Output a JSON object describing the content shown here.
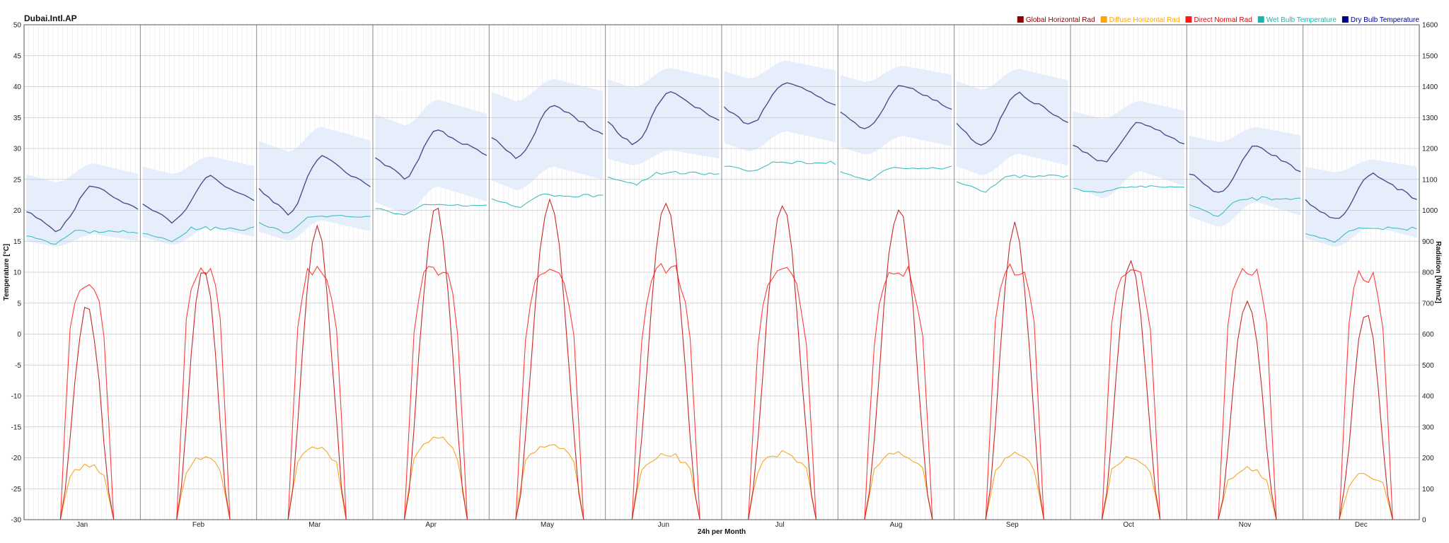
{
  "chart_data": {
    "type": "line",
    "title": "Dubai.Intl.AP",
    "xlabel": "24h per Month",
    "ylabel_left": "Temperature [°C]",
    "ylabel_right": "Radiation [Wh/m2]",
    "ylim_left": [
      -30,
      50
    ],
    "ylim_right": [
      0,
      1600
    ],
    "y_ticks_left": [
      -30,
      -25,
      -20,
      -15,
      -10,
      -5,
      0,
      5,
      10,
      15,
      20,
      25,
      30,
      35,
      40,
      45,
      50
    ],
    "y_ticks_right": [
      0,
      100,
      200,
      300,
      400,
      500,
      600,
      700,
      800,
      900,
      1000,
      1100,
      1200,
      1300,
      1400,
      1500,
      1600
    ],
    "categories": [
      "Jan",
      "Feb",
      "Mar",
      "Apr",
      "May",
      "Jun",
      "Jul",
      "Aug",
      "Sep",
      "Oct",
      "Nov",
      "Dec"
    ],
    "hours_per_month": 24,
    "grid": true,
    "legend_position": "top-right",
    "legend": [
      {
        "label": "Global Horizontal Rad",
        "color": "#8b0000",
        "text_color": "#8b0000"
      },
      {
        "label": "Diffuse Horizontal Rad",
        "color": "#ffa500",
        "text_color": "#ffa500"
      },
      {
        "label": "Direct Normal Rad",
        "color": "#ff1a1a",
        "text_color": "#e00000"
      },
      {
        "label": "Wet Bulb Temperature",
        "color": "#20b2aa",
        "text_color": "#20b2aa"
      },
      {
        "label": "Dry Bulb Temperature",
        "color": "#00008b",
        "text_color": "#00008b"
      }
    ],
    "colors": {
      "dry_bulb": "#4a4f8c",
      "dry_band": "#e6eefc",
      "wet_bulb": "#3fbfbf",
      "global": "#c62828",
      "diffuse": "#f5a623",
      "direct": "#ff3b3b"
    },
    "series": [
      {
        "name": "Dry Bulb Temperature",
        "axis": "left",
        "monthly": [
          {
            "month": "Jan",
            "min": 16.8,
            "max": 24,
            "min_hour": 6,
            "max_hour": 14
          },
          {
            "month": "Feb",
            "min": 18.2,
            "max": 25.4,
            "min_hour": 6,
            "max_hour": 14
          },
          {
            "month": "Mar",
            "min": 19.5,
            "max": 28.8,
            "min_hour": 6,
            "max_hour": 13
          },
          {
            "month": "Apr",
            "min": 25.3,
            "max": 33.0,
            "min_hour": 6,
            "max_hour": 13
          },
          {
            "month": "May",
            "min": 28.3,
            "max": 37.0,
            "min_hour": 5,
            "max_hour": 13
          },
          {
            "month": "Jun",
            "min": 30.5,
            "max": 39.3,
            "min_hour": 5,
            "max_hour": 13
          },
          {
            "month": "Jul",
            "min": 33.8,
            "max": 40.8,
            "min_hour": 5,
            "max_hour": 13
          },
          {
            "month": "Aug",
            "min": 33.0,
            "max": 40.3,
            "min_hour": 5,
            "max_hour": 13
          },
          {
            "month": "Sep",
            "min": 30.3,
            "max": 38.9,
            "min_hour": 5,
            "max_hour": 13
          },
          {
            "month": "Oct",
            "min": 27.8,
            "max": 34.3,
            "min_hour": 6,
            "max_hour": 14
          },
          {
            "month": "Nov",
            "min": 22.7,
            "max": 30.6,
            "min_hour": 6,
            "max_hour": 14
          },
          {
            "month": "Dec",
            "min": 18.5,
            "max": 25.8,
            "min_hour": 6,
            "max_hour": 14
          }
        ],
        "band": [
          {
            "month": "Jan",
            "low": 13.5,
            "high": 29.5
          },
          {
            "month": "Feb",
            "low": 13.5,
            "high": 30.5
          },
          {
            "month": "Mar",
            "low": 14.0,
            "high": 36.0
          },
          {
            "month": "Apr",
            "low": 18.0,
            "high": 40.5
          },
          {
            "month": "May",
            "low": 22.0,
            "high": 43.5
          },
          {
            "month": "Jun",
            "low": 26.5,
            "high": 45.0
          },
          {
            "month": "Jul",
            "low": 28.5,
            "high": 46.0
          },
          {
            "month": "Aug",
            "low": 28.0,
            "high": 45.0
          },
          {
            "month": "Sep",
            "low": 24.5,
            "high": 45.0
          },
          {
            "month": "Oct",
            "low": 20.5,
            "high": 39.5
          },
          {
            "month": "Nov",
            "low": 16.0,
            "high": 35.0
          },
          {
            "month": "Dec",
            "low": 13.0,
            "high": 29.5
          }
        ]
      },
      {
        "name": "Wet Bulb Temperature",
        "axis": "left",
        "monthly": [
          {
            "month": "Jan",
            "min": 14.5,
            "max": 16.8
          },
          {
            "month": "Feb",
            "min": 15.0,
            "max": 17.3
          },
          {
            "month": "Mar",
            "min": 16.2,
            "max": 19.2
          },
          {
            "month": "Apr",
            "min": 19.2,
            "max": 21.1
          },
          {
            "month": "May",
            "min": 20.5,
            "max": 22.6
          },
          {
            "month": "Jun",
            "min": 24.2,
            "max": 26.2
          },
          {
            "month": "Jul",
            "min": 26.3,
            "max": 27.8
          },
          {
            "month": "Aug",
            "min": 24.8,
            "max": 27.1
          },
          {
            "month": "Sep",
            "min": 23.0,
            "max": 25.8
          },
          {
            "month": "Oct",
            "min": 22.8,
            "max": 23.9
          },
          {
            "month": "Nov",
            "min": 19.0,
            "max": 22.2
          },
          {
            "month": "Dec",
            "min": 14.9,
            "max": 17.3
          }
        ]
      },
      {
        "name": "Global Horizontal Rad",
        "axis": "right",
        "monthly": [
          {
            "month": "Jan",
            "peak": 690,
            "sunrise": 7,
            "sunset": 18
          },
          {
            "month": "Feb",
            "peak": 820,
            "sunrise": 7,
            "sunset": 18
          },
          {
            "month": "Mar",
            "peak": 940,
            "sunrise": 6,
            "sunset": 18
          },
          {
            "month": "Apr",
            "peak": 1010,
            "sunrise": 6,
            "sunset": 19
          },
          {
            "month": "May",
            "peak": 1030,
            "sunrise": 5,
            "sunset": 19
          },
          {
            "month": "Jun",
            "peak": 1020,
            "sunrise": 5,
            "sunset": 19
          },
          {
            "month": "Jul",
            "peak": 1015,
            "sunrise": 5,
            "sunset": 19
          },
          {
            "month": "Aug",
            "peak": 1005,
            "sunrise": 5,
            "sunset": 19
          },
          {
            "month": "Sep",
            "peak": 955,
            "sunrise": 6,
            "sunset": 18
          },
          {
            "month": "Oct",
            "peak": 840,
            "sunrise": 6,
            "sunset": 18
          },
          {
            "month": "Nov",
            "peak": 720,
            "sunrise": 6,
            "sunset": 18
          },
          {
            "month": "Dec",
            "peak": 665,
            "sunrise": 7,
            "sunset": 18
          }
        ]
      },
      {
        "name": "Diffuse Horizontal Rad",
        "axis": "right",
        "monthly": [
          {
            "month": "Jan",
            "peak": 175
          },
          {
            "month": "Feb",
            "peak": 200
          },
          {
            "month": "Mar",
            "peak": 235
          },
          {
            "month": "Apr",
            "peak": 265
          },
          {
            "month": "May",
            "peak": 245
          },
          {
            "month": "Jun",
            "peak": 215
          },
          {
            "month": "Jul",
            "peak": 215
          },
          {
            "month": "Aug",
            "peak": 215
          },
          {
            "month": "Sep",
            "peak": 210
          },
          {
            "month": "Oct",
            "peak": 200
          },
          {
            "month": "Nov",
            "peak": 165
          },
          {
            "month": "Dec",
            "peak": 145
          }
        ]
      },
      {
        "name": "Direct Normal Rad",
        "axis": "right",
        "monthly": [
          {
            "month": "Jan",
            "peak": 755
          },
          {
            "month": "Feb",
            "peak": 800
          },
          {
            "month": "Mar",
            "peak": 800
          },
          {
            "month": "Apr",
            "peak": 810
          },
          {
            "month": "May",
            "peak": 805
          },
          {
            "month": "Jun",
            "peak": 808
          },
          {
            "month": "Jul",
            "peak": 798
          },
          {
            "month": "Aug",
            "peak": 800
          },
          {
            "month": "Sep",
            "peak": 810
          },
          {
            "month": "Oct",
            "peak": 800
          },
          {
            "month": "Nov",
            "peak": 800
          },
          {
            "month": "Dec",
            "peak": 785
          }
        ]
      }
    ]
  }
}
